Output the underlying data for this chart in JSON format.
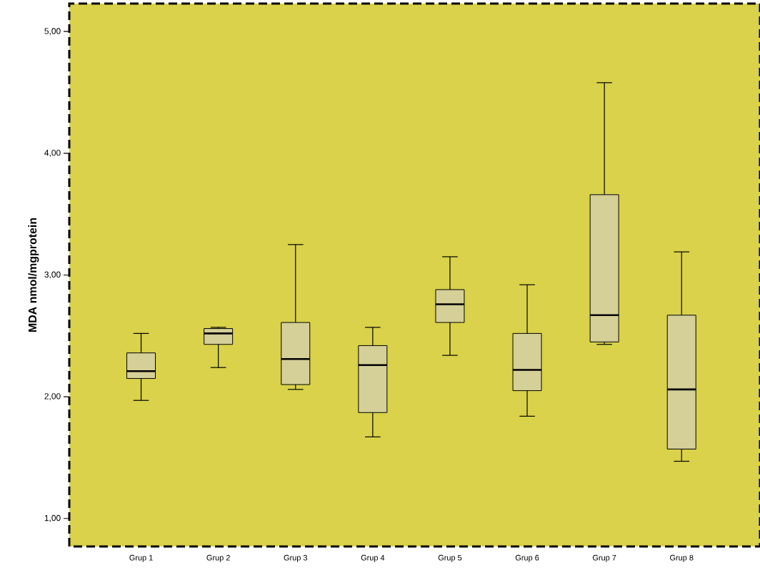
{
  "chart_data": {
    "type": "box",
    "ylabel": "MDA nmol/mgprotein",
    "categories": [
      "Grup 1",
      "Grup 2",
      "Grup 3",
      "Grup 4",
      "Grup 5",
      "Grup 6",
      "Grup 7",
      "Grup 8"
    ],
    "series": [
      {
        "color": "#d5cf98",
        "boxes": [
          {
            "low": 1.97,
            "q1": 2.15,
            "median": 2.21,
            "q3": 2.36,
            "high": 2.52
          },
          {
            "low": 2.24,
            "q1": 2.43,
            "median": 2.52,
            "q3": 2.56,
            "high": 2.57
          },
          {
            "low": 2.06,
            "q1": 2.1,
            "median": 2.31,
            "q3": 2.61,
            "high": 3.25
          },
          {
            "low": 1.67,
            "q1": 1.87,
            "median": 2.26,
            "q3": 2.42,
            "high": 2.57
          },
          {
            "low": 2.34,
            "q1": 2.61,
            "median": 2.76,
            "q3": 2.88,
            "high": 3.15
          },
          {
            "low": 1.84,
            "q1": 2.05,
            "median": 2.22,
            "q3": 2.52,
            "high": 2.92
          },
          {
            "low": 2.43,
            "q1": 2.45,
            "median": 2.67,
            "q3": 3.66,
            "high": 4.58
          },
          {
            "low": 1.47,
            "q1": 1.57,
            "median": 2.06,
            "q3": 2.67,
            "high": 3.19
          }
        ]
      }
    ],
    "ylim": [
      0.77,
      5.23
    ],
    "yticks": [
      {
        "value": 1,
        "label": "1,00"
      },
      {
        "value": 2,
        "label": "2,00"
      },
      {
        "value": 3,
        "label": "3,00"
      },
      {
        "value": 4,
        "label": "4,00"
      },
      {
        "value": 5,
        "label": "5,00"
      }
    ]
  }
}
